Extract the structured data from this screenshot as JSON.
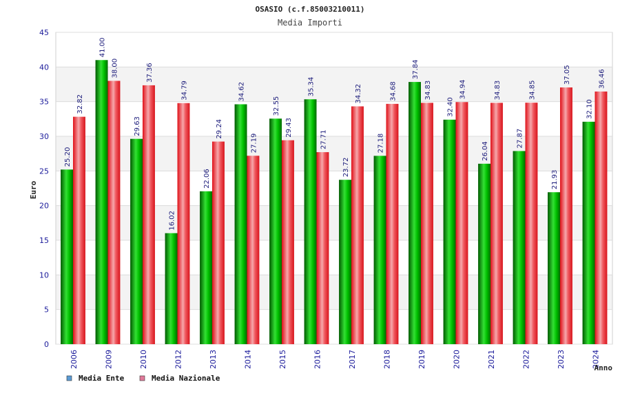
{
  "chart_data": {
    "type": "bar",
    "title": "OSASIO (c.f.85003210011)",
    "subtitle": "Media Importi",
    "xlabel": "Anno",
    "ylabel": "Euro",
    "ylim": [
      0,
      45
    ],
    "yticks": [
      0,
      5,
      10,
      15,
      20,
      25,
      30,
      35,
      40,
      45
    ],
    "grid": true,
    "legend_position": "bottom-left",
    "categories": [
      "2006",
      "2009",
      "2010",
      "2012",
      "2013",
      "2014",
      "2015",
      "2016",
      "2017",
      "2018",
      "2019",
      "2020",
      "2021",
      "2022",
      "2023",
      "2024"
    ],
    "series": [
      {
        "name": "Media Ente",
        "color": "#00b000",
        "legend_color": "#5b9bd5",
        "values": [
          25.2,
          41.0,
          29.63,
          16.02,
          22.06,
          34.62,
          32.55,
          35.34,
          23.72,
          27.18,
          37.84,
          32.4,
          26.04,
          27.87,
          21.93,
          32.1
        ],
        "labels": [
          "25.20",
          "41.00",
          "29.63",
          "16.02",
          "22.06",
          "34.62",
          "32.55",
          "35.34",
          "23.72",
          "27.18",
          "37.84",
          "32.40",
          "26.04",
          "27.87",
          "21.93",
          "32.10"
        ]
      },
      {
        "name": "Media Nazionale",
        "color": "#e8232a",
        "legend_color": "#e07a9a",
        "values": [
          32.82,
          38.0,
          37.36,
          34.79,
          29.24,
          27.19,
          29.43,
          27.71,
          34.32,
          34.68,
          34.83,
          34.94,
          34.83,
          34.85,
          37.05,
          36.46
        ],
        "labels": [
          "32.82",
          "38.00",
          "37.36",
          "34.79",
          "29.24",
          "27.19",
          "29.43",
          "27.71",
          "34.32",
          "34.68",
          "34.83",
          "34.94",
          "34.83",
          "34.85",
          "37.05",
          "36.46"
        ]
      }
    ]
  }
}
